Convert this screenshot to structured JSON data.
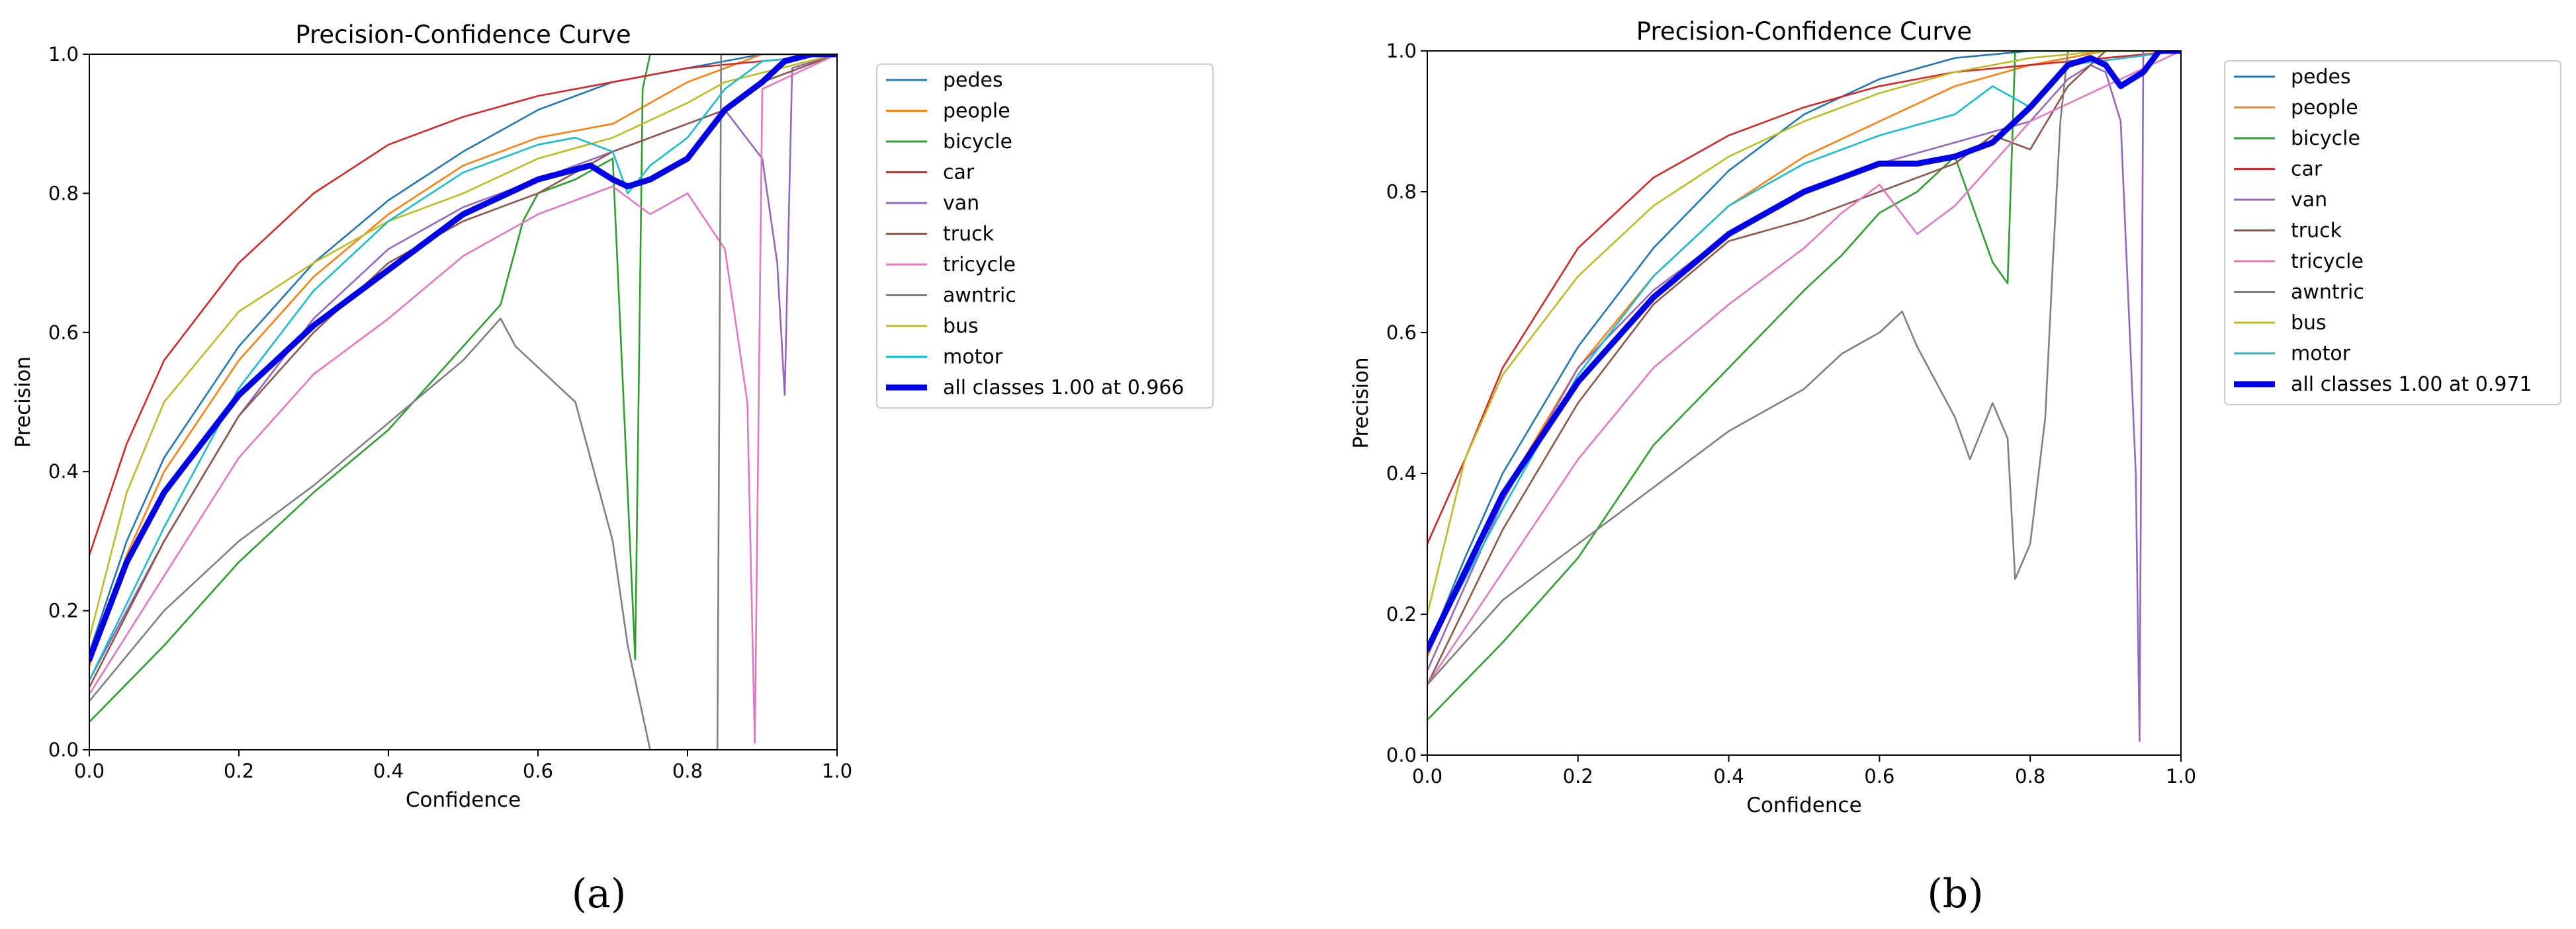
{
  "chart_data": [
    {
      "type": "line",
      "panel_label": "(a)",
      "title": "Precision-Confidence Curve",
      "xlabel": "Confidence",
      "ylabel": "Precision",
      "xlim": [
        0,
        1
      ],
      "ylim": [
        0,
        1
      ],
      "xticks": [
        "0.0",
        "0.2",
        "0.4",
        "0.6",
        "0.8",
        "1.0"
      ],
      "yticks": [
        "0.0",
        "0.2",
        "0.4",
        "0.6",
        "0.8",
        "1.0"
      ],
      "grid": false,
      "legend_position": "outside-right",
      "series": [
        {
          "name": "pedes",
          "color": "#1f77b4",
          "x": [
            0,
            0.05,
            0.1,
            0.2,
            0.3,
            0.4,
            0.5,
            0.6,
            0.7,
            0.8,
            0.9,
            1.0
          ],
          "y": [
            0.14,
            0.3,
            0.42,
            0.58,
            0.7,
            0.79,
            0.86,
            0.92,
            0.96,
            0.98,
            1.0,
            1.0
          ]
        },
        {
          "name": "people",
          "color": "#ff7f0e",
          "x": [
            0,
            0.05,
            0.1,
            0.2,
            0.3,
            0.4,
            0.5,
            0.6,
            0.7,
            0.8,
            0.9,
            1.0
          ],
          "y": [
            0.12,
            0.28,
            0.4,
            0.56,
            0.68,
            0.77,
            0.84,
            0.88,
            0.9,
            0.96,
            1.0,
            1.0
          ]
        },
        {
          "name": "bicycle",
          "color": "#2ca02c",
          "x": [
            0,
            0.1,
            0.2,
            0.3,
            0.4,
            0.5,
            0.55,
            0.58,
            0.6,
            0.65,
            0.7,
            0.73,
            0.74,
            0.75,
            0.8,
            1.0
          ],
          "y": [
            0.04,
            0.15,
            0.27,
            0.37,
            0.46,
            0.58,
            0.64,
            0.76,
            0.8,
            0.82,
            0.85,
            0.13,
            0.95,
            1.0,
            1.0,
            1.0
          ]
        },
        {
          "name": "car",
          "color": "#d62728",
          "x": [
            0,
            0.05,
            0.1,
            0.2,
            0.3,
            0.4,
            0.5,
            0.6,
            0.7,
            0.8,
            0.9,
            1.0
          ],
          "y": [
            0.28,
            0.44,
            0.56,
            0.7,
            0.8,
            0.87,
            0.91,
            0.94,
            0.96,
            0.98,
            0.99,
            1.0
          ]
        },
        {
          "name": "van",
          "color": "#9467bd",
          "x": [
            0,
            0.1,
            0.2,
            0.3,
            0.4,
            0.5,
            0.6,
            0.7,
            0.8,
            0.85,
            0.9,
            0.92,
            0.93,
            0.94,
            1.0
          ],
          "y": [
            0.1,
            0.3,
            0.48,
            0.62,
            0.72,
            0.78,
            0.82,
            0.86,
            0.9,
            0.92,
            0.85,
            0.7,
            0.51,
            0.98,
            1.0
          ]
        },
        {
          "name": "truck",
          "color": "#8c564b",
          "x": [
            0,
            0.1,
            0.2,
            0.3,
            0.4,
            0.5,
            0.6,
            0.7,
            0.8,
            0.85,
            0.9,
            1.0
          ],
          "y": [
            0.09,
            0.3,
            0.48,
            0.6,
            0.7,
            0.76,
            0.8,
            0.86,
            0.9,
            0.92,
            0.96,
            1.0
          ]
        },
        {
          "name": "tricycle",
          "color": "#e377c2",
          "x": [
            0,
            0.1,
            0.2,
            0.3,
            0.4,
            0.5,
            0.6,
            0.7,
            0.75,
            0.8,
            0.85,
            0.88,
            0.89,
            0.9,
            1.0
          ],
          "y": [
            0.08,
            0.25,
            0.42,
            0.54,
            0.62,
            0.71,
            0.77,
            0.81,
            0.77,
            0.8,
            0.72,
            0.5,
            0.01,
            0.95,
            1.0
          ]
        },
        {
          "name": "awntric",
          "color": "#7f7f7f",
          "x": [
            0,
            0.1,
            0.2,
            0.3,
            0.4,
            0.5,
            0.55,
            0.57,
            0.6,
            0.65,
            0.7,
            0.72,
            0.74,
            0.75,
            0.84,
            0.845,
            1.0
          ],
          "y": [
            0.07,
            0.2,
            0.3,
            0.38,
            0.47,
            0.56,
            0.62,
            0.58,
            0.55,
            0.5,
            0.3,
            0.15,
            0.05,
            0.0,
            0.0,
            1.0,
            1.0
          ]
        },
        {
          "name": "bus",
          "color": "#bcbd22",
          "x": [
            0,
            0.05,
            0.1,
            0.2,
            0.3,
            0.4,
            0.5,
            0.6,
            0.7,
            0.8,
            0.85,
            1.0
          ],
          "y": [
            0.16,
            0.37,
            0.5,
            0.63,
            0.7,
            0.76,
            0.8,
            0.85,
            0.88,
            0.93,
            0.96,
            1.0
          ]
        },
        {
          "name": "motor",
          "color": "#17becf",
          "x": [
            0,
            0.1,
            0.2,
            0.3,
            0.4,
            0.5,
            0.6,
            0.65,
            0.7,
            0.72,
            0.75,
            0.8,
            0.85,
            0.9,
            1.0
          ],
          "y": [
            0.1,
            0.32,
            0.52,
            0.66,
            0.76,
            0.83,
            0.87,
            0.88,
            0.86,
            0.8,
            0.84,
            0.88,
            0.95,
            0.99,
            1.0
          ]
        },
        {
          "name": "all classes 1.00 at 0.966",
          "color": "#0000e6",
          "bold": true,
          "x": [
            0,
            0.05,
            0.1,
            0.2,
            0.3,
            0.4,
            0.5,
            0.6,
            0.67,
            0.7,
            0.72,
            0.75,
            0.8,
            0.85,
            0.9,
            0.93,
            0.966,
            1.0
          ],
          "y": [
            0.13,
            0.27,
            0.37,
            0.51,
            0.61,
            0.69,
            0.77,
            0.82,
            0.84,
            0.82,
            0.81,
            0.82,
            0.85,
            0.92,
            0.96,
            0.99,
            1.0,
            1.0
          ]
        }
      ]
    },
    {
      "type": "line",
      "panel_label": "(b)",
      "title": "Precision-Confidence Curve",
      "xlabel": "Confidence",
      "ylabel": "Precision",
      "xlim": [
        0,
        1
      ],
      "ylim": [
        0,
        1
      ],
      "xticks": [
        "0.0",
        "0.2",
        "0.4",
        "0.6",
        "0.8",
        "1.0"
      ],
      "yticks": [
        "0.0",
        "0.2",
        "0.4",
        "0.6",
        "0.8",
        "1.0"
      ],
      "grid": false,
      "legend_position": "outside-right",
      "series": [
        {
          "name": "pedes",
          "color": "#1f77b4",
          "x": [
            0,
            0.05,
            0.1,
            0.2,
            0.3,
            0.4,
            0.5,
            0.6,
            0.7,
            0.8,
            0.9,
            1.0
          ],
          "y": [
            0.15,
            0.28,
            0.4,
            0.58,
            0.72,
            0.83,
            0.91,
            0.96,
            0.99,
            1.0,
            1.0,
            1.0
          ]
        },
        {
          "name": "people",
          "color": "#ff7f0e",
          "x": [
            0,
            0.05,
            0.1,
            0.2,
            0.3,
            0.4,
            0.5,
            0.6,
            0.7,
            0.8,
            0.9,
            1.0
          ],
          "y": [
            0.14,
            0.26,
            0.37,
            0.55,
            0.68,
            0.78,
            0.85,
            0.9,
            0.95,
            0.98,
            1.0,
            1.0
          ]
        },
        {
          "name": "bicycle",
          "color": "#2ca02c",
          "x": [
            0,
            0.1,
            0.2,
            0.3,
            0.4,
            0.5,
            0.55,
            0.6,
            0.65,
            0.7,
            0.75,
            0.77,
            0.78,
            1.0
          ],
          "y": [
            0.05,
            0.16,
            0.28,
            0.44,
            0.55,
            0.66,
            0.71,
            0.77,
            0.8,
            0.85,
            0.7,
            0.67,
            1.0,
            1.0
          ]
        },
        {
          "name": "car",
          "color": "#d62728",
          "x": [
            0,
            0.05,
            0.1,
            0.2,
            0.3,
            0.4,
            0.5,
            0.6,
            0.7,
            0.8,
            0.9,
            1.0
          ],
          "y": [
            0.3,
            0.42,
            0.55,
            0.72,
            0.82,
            0.88,
            0.92,
            0.95,
            0.97,
            0.98,
            0.99,
            1.0
          ]
        },
        {
          "name": "van",
          "color": "#9467bd",
          "x": [
            0,
            0.1,
            0.2,
            0.3,
            0.4,
            0.5,
            0.6,
            0.7,
            0.8,
            0.85,
            0.88,
            0.9,
            0.92,
            0.94,
            0.945,
            0.95,
            1.0
          ],
          "y": [
            0.12,
            0.36,
            0.55,
            0.66,
            0.74,
            0.8,
            0.84,
            0.87,
            0.9,
            0.96,
            0.98,
            0.97,
            0.9,
            0.4,
            0.02,
            1.0,
            1.0
          ]
        },
        {
          "name": "truck",
          "color": "#8c564b",
          "x": [
            0,
            0.1,
            0.2,
            0.3,
            0.4,
            0.5,
            0.6,
            0.7,
            0.75,
            0.8,
            0.85,
            0.9,
            1.0
          ],
          "y": [
            0.1,
            0.32,
            0.5,
            0.64,
            0.73,
            0.76,
            0.8,
            0.84,
            0.88,
            0.86,
            0.95,
            1.0,
            1.0
          ]
        },
        {
          "name": "tricycle",
          "color": "#e377c2",
          "x": [
            0,
            0.1,
            0.2,
            0.3,
            0.4,
            0.5,
            0.55,
            0.6,
            0.65,
            0.7,
            0.75,
            0.8,
            1.0
          ],
          "y": [
            0.1,
            0.26,
            0.42,
            0.55,
            0.64,
            0.72,
            0.77,
            0.81,
            0.74,
            0.78,
            0.84,
            0.9,
            1.0
          ]
        },
        {
          "name": "awntric",
          "color": "#7f7f7f",
          "x": [
            0,
            0.1,
            0.2,
            0.3,
            0.4,
            0.5,
            0.55,
            0.6,
            0.63,
            0.65,
            0.7,
            0.72,
            0.75,
            0.77,
            0.78,
            0.8,
            0.82,
            0.83,
            0.84,
            0.85,
            0.87,
            0.9,
            1.0
          ],
          "y": [
            0.1,
            0.22,
            0.3,
            0.38,
            0.46,
            0.52,
            0.57,
            0.6,
            0.63,
            0.58,
            0.48,
            0.42,
            0.5,
            0.45,
            0.25,
            0.3,
            0.48,
            0.7,
            0.9,
            1.0,
            1.0,
            1.0,
            1.0
          ]
        },
        {
          "name": "bus",
          "color": "#bcbd22",
          "x": [
            0,
            0.05,
            0.1,
            0.2,
            0.3,
            0.4,
            0.5,
            0.6,
            0.7,
            0.8,
            0.9,
            1.0
          ],
          "y": [
            0.2,
            0.42,
            0.54,
            0.68,
            0.78,
            0.85,
            0.9,
            0.94,
            0.97,
            0.99,
            1.0,
            1.0
          ]
        },
        {
          "name": "motor",
          "color": "#17becf",
          "x": [
            0,
            0.1,
            0.2,
            0.3,
            0.4,
            0.5,
            0.6,
            0.7,
            0.75,
            0.8,
            0.85,
            1.0
          ],
          "y": [
            0.15,
            0.35,
            0.54,
            0.68,
            0.78,
            0.84,
            0.88,
            0.91,
            0.95,
            0.92,
            0.98,
            1.0
          ]
        },
        {
          "name": "all classes 1.00 at 0.971",
          "color": "#0000e6",
          "bold": true,
          "x": [
            0,
            0.05,
            0.1,
            0.2,
            0.3,
            0.4,
            0.5,
            0.6,
            0.65,
            0.7,
            0.75,
            0.8,
            0.85,
            0.88,
            0.9,
            0.92,
            0.95,
            0.971,
            1.0
          ],
          "y": [
            0.15,
            0.26,
            0.37,
            0.53,
            0.65,
            0.74,
            0.8,
            0.84,
            0.84,
            0.85,
            0.87,
            0.92,
            0.98,
            0.99,
            0.98,
            0.95,
            0.97,
            1.0,
            1.0
          ]
        }
      ]
    }
  ]
}
